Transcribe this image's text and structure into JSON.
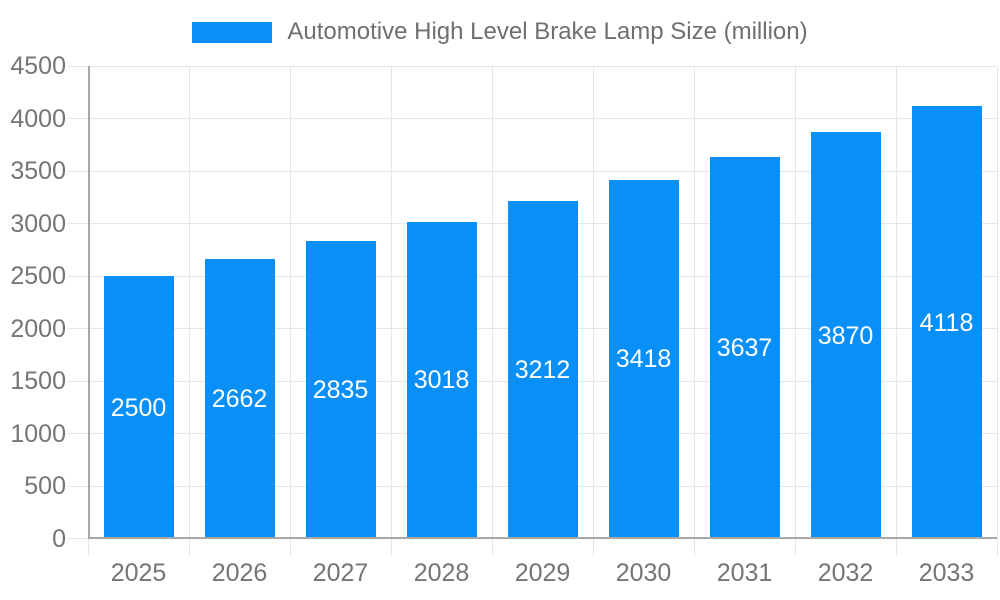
{
  "chart_data": {
    "type": "bar",
    "series_name": "Automotive High Level Brake Lamp Size (million)",
    "categories": [
      "2025",
      "2026",
      "2027",
      "2028",
      "2029",
      "2030",
      "2031",
      "2032",
      "2033"
    ],
    "values": [
      2500,
      2662,
      2835,
      3018,
      3212,
      3418,
      3637,
      3870,
      4118
    ],
    "title": "",
    "xlabel": "",
    "ylabel": "",
    "ylim": [
      0,
      4500
    ],
    "yticks": [
      0,
      500,
      1000,
      1500,
      2000,
      2500,
      3000,
      3500,
      4000,
      4500
    ],
    "grid": true,
    "legend_position": "top-center",
    "value_label_position": "inside-middle",
    "bar_color": "#0990F8",
    "grid_color": "#E6E6E6",
    "axis_color": "#A8A8A8",
    "tick_text_color": "#757575",
    "legend_text_color": "#6F6F6F",
    "value_label_color": "#FFFFFF"
  }
}
